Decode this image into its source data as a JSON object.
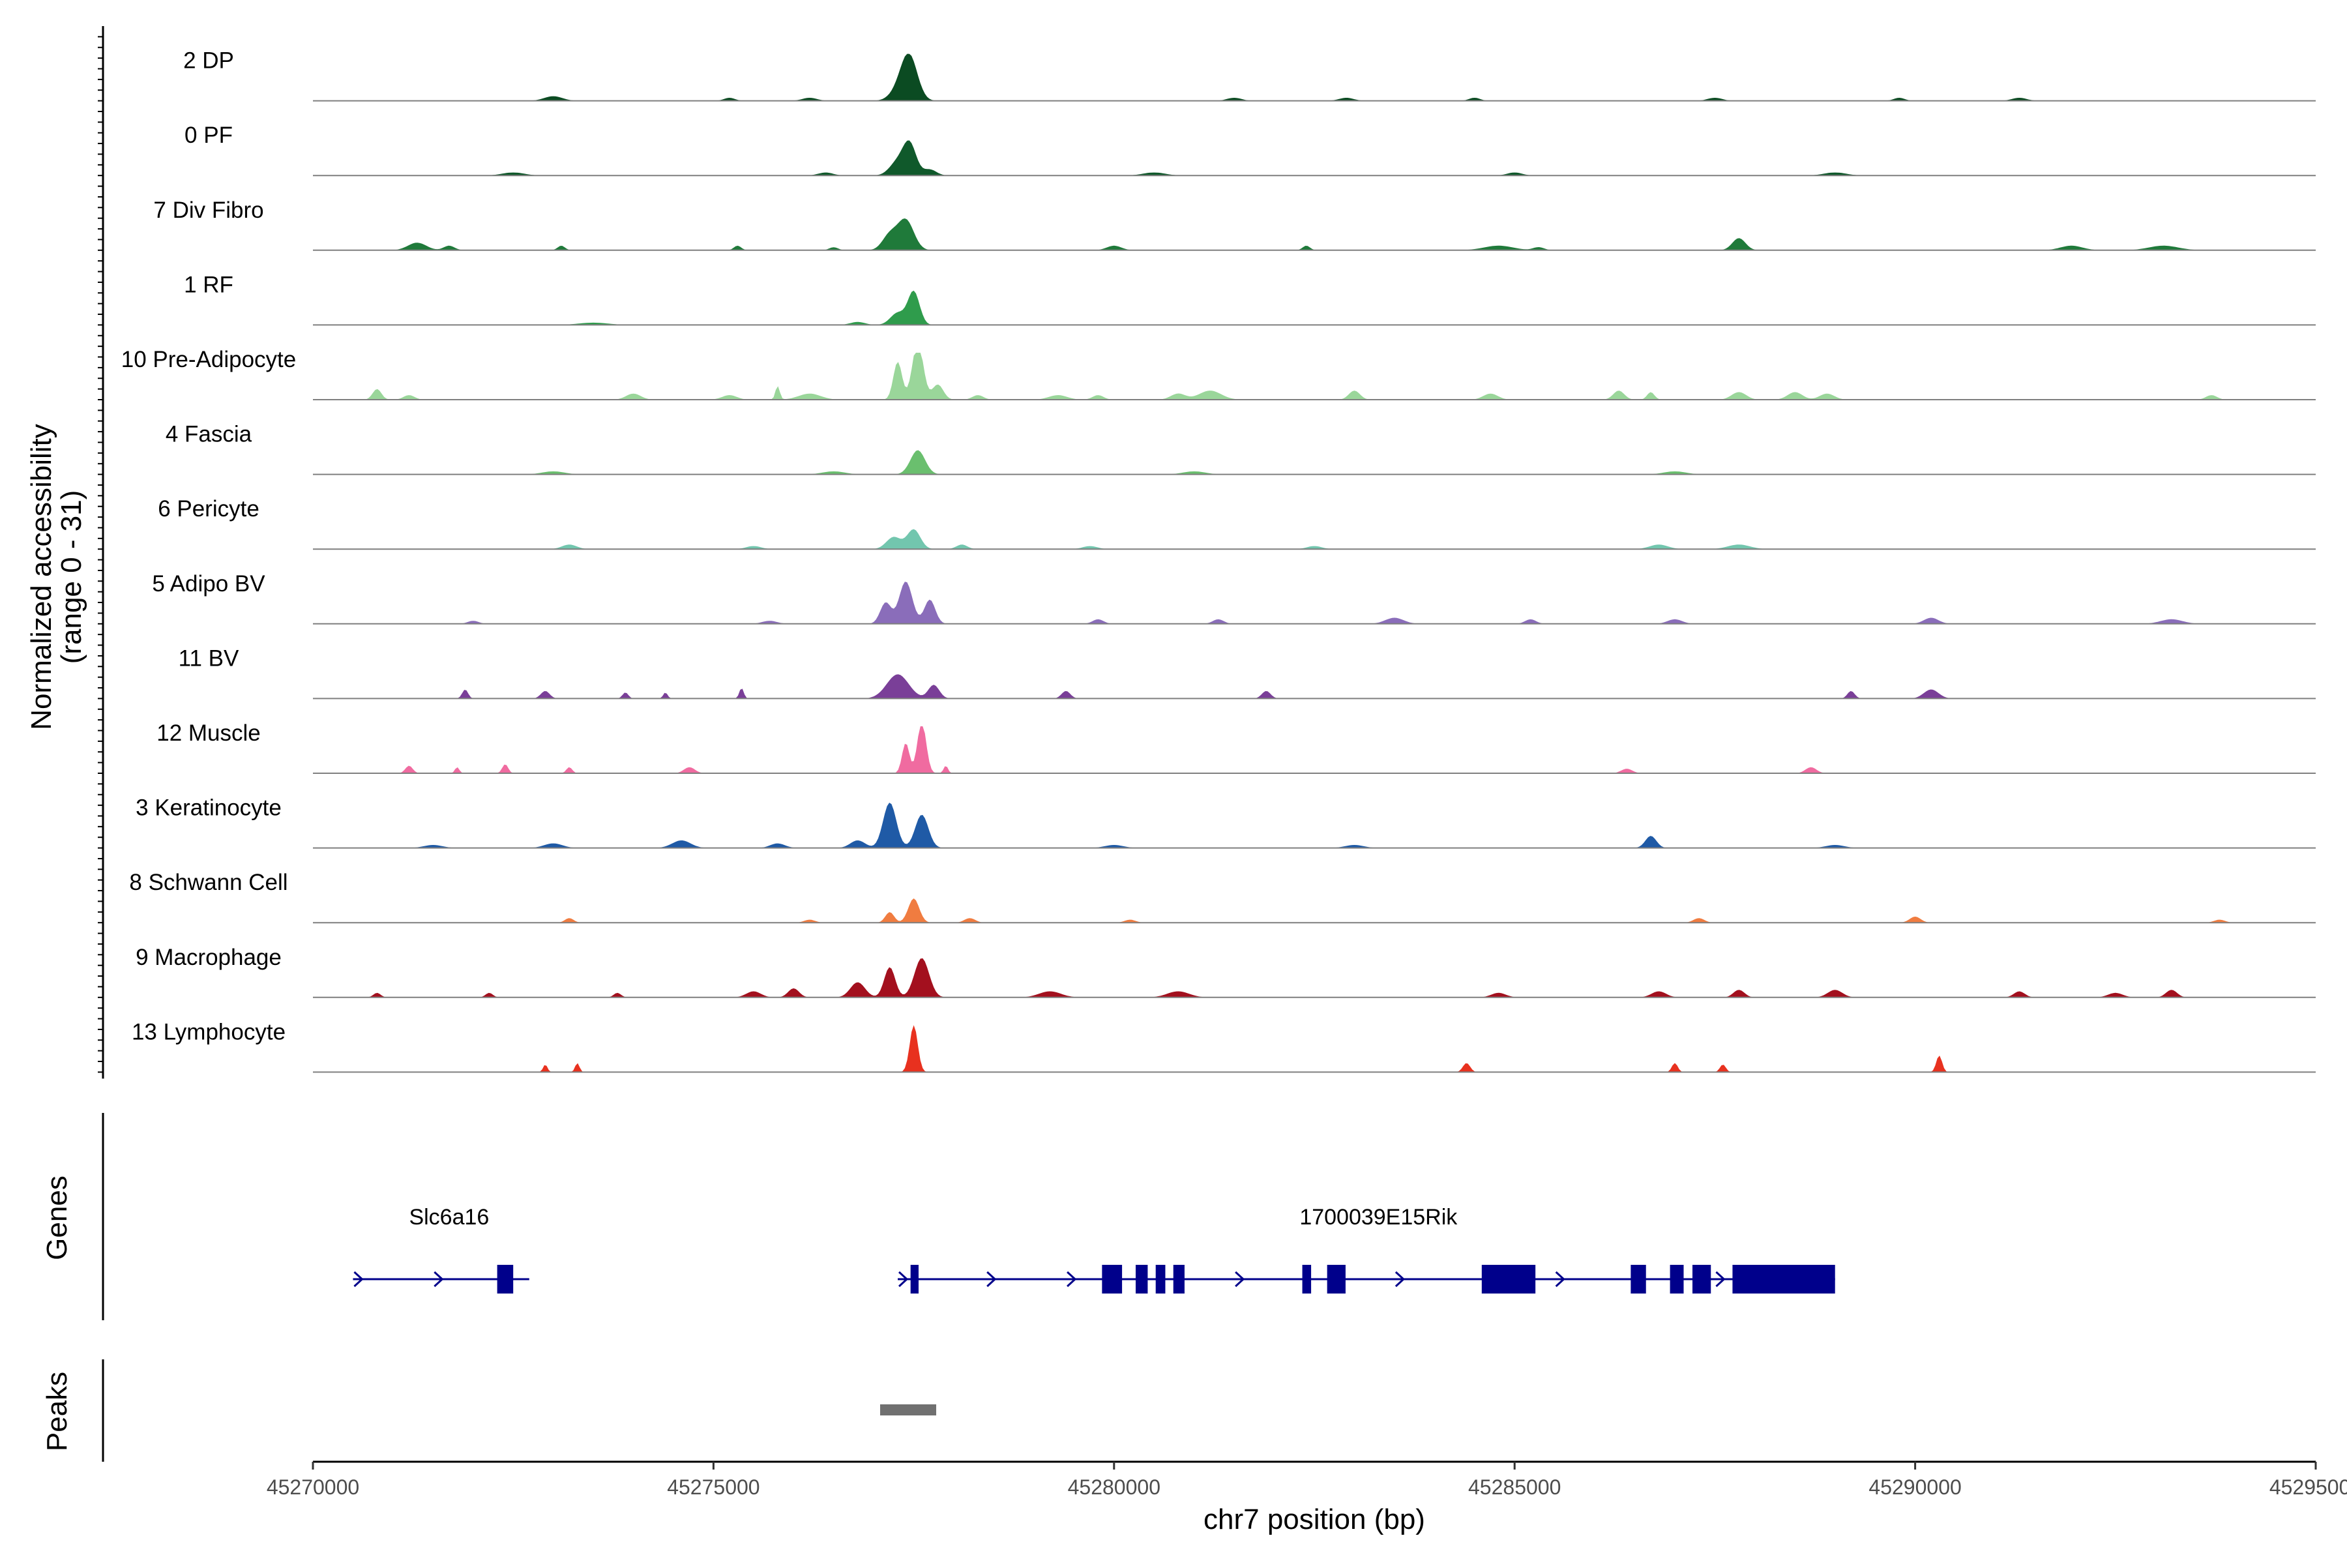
{
  "chart_data": {
    "type": "area",
    "title": "",
    "xlabel": "chr7 position (bp)",
    "ylabel": "Normalized accessibility\n(range 0 - 31)",
    "y_range_label": "(range 0 - 31)",
    "ylim": [
      0,
      31
    ],
    "xlim": [
      45270000,
      45295000
    ],
    "x_ticks": [
      45270000,
      45275000,
      45280000,
      45285000,
      45290000,
      45295000
    ],
    "x_tick_labels": [
      "45270000",
      "45275000",
      "45280000",
      "45285000",
      "45290000",
      "45295000"
    ],
    "track_range": [
      45270000,
      45295000
    ],
    "panels": {
      "genes_label": "Genes",
      "peaks_label": "Peaks"
    },
    "series": [
      {
        "name": "2 DP",
        "color": "#0b4b22",
        "peaks": [
          [
            45277450,
            25,
            220
          ],
          [
            45277350,
            9,
            260
          ],
          [
            45273000,
            3,
            250
          ],
          [
            45275200,
            2,
            150
          ],
          [
            45276200,
            2,
            200
          ],
          [
            45281500,
            2,
            200
          ],
          [
            45282900,
            2,
            200
          ],
          [
            45284500,
            2,
            150
          ],
          [
            45287500,
            2,
            200
          ],
          [
            45289800,
            2,
            150
          ],
          [
            45291300,
            2,
            200
          ]
        ]
      },
      {
        "name": "0 PF",
        "color": "#10592b",
        "peaks": [
          [
            45277450,
            20,
            180
          ],
          [
            45277300,
            9,
            220
          ],
          [
            45277700,
            4,
            180
          ],
          [
            45272500,
            2,
            300
          ],
          [
            45276400,
            2,
            200
          ],
          [
            45280500,
            2,
            300
          ],
          [
            45285000,
            2,
            200
          ],
          [
            45289000,
            2,
            300
          ]
        ]
      },
      {
        "name": "7 Div Fibro",
        "color": "#1f7a3a",
        "peaks": [
          [
            45277400,
            20,
            220
          ],
          [
            45277200,
            10,
            200
          ],
          [
            45271300,
            5,
            250
          ],
          [
            45271700,
            3,
            150
          ],
          [
            45273100,
            3,
            100
          ],
          [
            45275300,
            3,
            100
          ],
          [
            45276500,
            2,
            120
          ],
          [
            45280000,
            3,
            200
          ],
          [
            45282400,
            3,
            100
          ],
          [
            45284800,
            3,
            400
          ],
          [
            45285300,
            2,
            150
          ],
          [
            45287800,
            8,
            180
          ],
          [
            45291950,
            3,
            300
          ],
          [
            45293100,
            3,
            400
          ]
        ]
      },
      {
        "name": "1 RF",
        "color": "#2f9c4c",
        "peaks": [
          [
            45277500,
            22,
            160
          ],
          [
            45277300,
            8,
            200
          ],
          [
            45273500,
            1.5,
            400
          ],
          [
            45276800,
            2,
            200
          ]
        ]
      },
      {
        "name": "10 Pre-Adipocyte",
        "color": "#9ad69a",
        "peaks": [
          [
            45277550,
            38,
            150
          ],
          [
            45277300,
            25,
            120
          ],
          [
            45277800,
            10,
            150
          ],
          [
            45270800,
            7,
            120
          ],
          [
            45271200,
            3,
            150
          ],
          [
            45274000,
            4,
            200
          ],
          [
            45275200,
            3,
            200
          ],
          [
            45275800,
            9,
            60
          ],
          [
            45276200,
            4,
            300
          ],
          [
            45278300,
            3,
            150
          ],
          [
            45279300,
            3,
            250
          ],
          [
            45279800,
            3,
            150
          ],
          [
            45280800,
            4,
            200
          ],
          [
            45281200,
            6,
            300
          ],
          [
            45283000,
            6,
            150
          ],
          [
            45284700,
            4,
            200
          ],
          [
            45286300,
            6,
            150
          ],
          [
            45286700,
            5,
            100
          ],
          [
            45287800,
            5,
            200
          ],
          [
            45288500,
            5,
            200
          ],
          [
            45288900,
            4,
            200
          ],
          [
            45293700,
            3,
            150
          ]
        ]
      },
      {
        "name": "4 Fascia",
        "color": "#6abf6e",
        "peaks": [
          [
            45277550,
            16,
            200
          ],
          [
            45273000,
            2,
            300
          ],
          [
            45276500,
            2,
            300
          ],
          [
            45281000,
            2,
            300
          ],
          [
            45287000,
            2,
            300
          ]
        ]
      },
      {
        "name": "6 Pericyte",
        "color": "#72c6ae",
        "peaks": [
          [
            45277500,
            13,
            180
          ],
          [
            45277250,
            8,
            200
          ],
          [
            45278100,
            3,
            150
          ],
          [
            45273200,
            3,
            200
          ],
          [
            45275500,
            2,
            200
          ],
          [
            45279700,
            2,
            200
          ],
          [
            45282500,
            2,
            200
          ],
          [
            45286800,
            3,
            250
          ],
          [
            45287800,
            3,
            300
          ]
        ]
      },
      {
        "name": "5 Adipo BV",
        "color": "#8a6dba",
        "peaks": [
          [
            45277400,
            28,
            180
          ],
          [
            45277700,
            16,
            150
          ],
          [
            45277150,
            14,
            150
          ],
          [
            45272000,
            2,
            150
          ],
          [
            45275700,
            2,
            200
          ],
          [
            45279800,
            3,
            150
          ],
          [
            45281300,
            3,
            150
          ],
          [
            45283500,
            4,
            250
          ],
          [
            45285200,
            3,
            150
          ],
          [
            45287000,
            3,
            200
          ],
          [
            45290200,
            4,
            200
          ],
          [
            45293200,
            3,
            300
          ]
        ]
      },
      {
        "name": "11 BV",
        "color": "#7a3f98",
        "peaks": [
          [
            45277300,
            16,
            300
          ],
          [
            45277750,
            9,
            150
          ],
          [
            45271900,
            6,
            80
          ],
          [
            45272900,
            5,
            120
          ],
          [
            45273900,
            4,
            80
          ],
          [
            45274400,
            4,
            60
          ],
          [
            45275350,
            7,
            60
          ],
          [
            45279400,
            5,
            120
          ],
          [
            45281900,
            5,
            120
          ],
          [
            45289200,
            5,
            100
          ],
          [
            45290200,
            6,
            200
          ]
        ]
      },
      {
        "name": "12 Muscle",
        "color": "#f06ba0",
        "peaks": [
          [
            45277600,
            34,
            120
          ],
          [
            45277400,
            20,
            100
          ],
          [
            45271200,
            5,
            100
          ],
          [
            45271800,
            4,
            60
          ],
          [
            45272400,
            6,
            80
          ],
          [
            45273200,
            4,
            80
          ],
          [
            45274700,
            4,
            150
          ],
          [
            45277900,
            5,
            60
          ],
          [
            45286400,
            3,
            150
          ],
          [
            45288700,
            4,
            150
          ]
        ]
      },
      {
        "name": "3 Keratinocyte",
        "color": "#1f5aa6",
        "peaks": [
          [
            45277200,
            30,
            180
          ],
          [
            45277600,
            22,
            180
          ],
          [
            45276800,
            5,
            200
          ],
          [
            45274600,
            5,
            250
          ],
          [
            45275800,
            3,
            200
          ],
          [
            45273000,
            3,
            250
          ],
          [
            45286700,
            8,
            150
          ],
          [
            45271500,
            2,
            250
          ],
          [
            45280000,
            2,
            250
          ],
          [
            45283000,
            2,
            250
          ],
          [
            45289000,
            2,
            250
          ]
        ]
      },
      {
        "name": "8 Schwann Cell",
        "color": "#f07c40",
        "peaks": [
          [
            45277500,
            16,
            150
          ],
          [
            45277200,
            7,
            120
          ],
          [
            45278200,
            3,
            150
          ],
          [
            45273200,
            3,
            120
          ],
          [
            45276200,
            2,
            150
          ],
          [
            45280200,
            2,
            150
          ],
          [
            45287300,
            3,
            150
          ],
          [
            45290000,
            4,
            150
          ],
          [
            45293800,
            2,
            150
          ]
        ]
      },
      {
        "name": "9 Macrophage",
        "color": "#a3101e",
        "peaks": [
          [
            45277600,
            26,
            200
          ],
          [
            45277200,
            20,
            150
          ],
          [
            45276800,
            10,
            200
          ],
          [
            45276000,
            6,
            150
          ],
          [
            45275500,
            4,
            200
          ],
          [
            45270800,
            3,
            100
          ],
          [
            45272200,
            3,
            100
          ],
          [
            45273800,
            3,
            100
          ],
          [
            45279200,
            4,
            300
          ],
          [
            45280800,
            4,
            300
          ],
          [
            45284800,
            3,
            200
          ],
          [
            45286800,
            4,
            200
          ],
          [
            45287800,
            5,
            150
          ],
          [
            45289000,
            5,
            200
          ],
          [
            45291300,
            4,
            150
          ],
          [
            45292500,
            3,
            200
          ],
          [
            45293200,
            5,
            150
          ]
        ]
      },
      {
        "name": "13 Lymphocyte",
        "color": "#e8311f",
        "peaks": [
          [
            45277500,
            31,
            110
          ],
          [
            45272900,
            5,
            60
          ],
          [
            45273300,
            6,
            60
          ],
          [
            45284400,
            6,
            100
          ],
          [
            45287000,
            6,
            80
          ],
          [
            45287600,
            5,
            80
          ],
          [
            45290300,
            11,
            80
          ]
        ]
      }
    ],
    "genes": [
      {
        "name": "Slc6a16",
        "label_pos": 45271700,
        "start": 45270500,
        "end": 45272700,
        "exons": [
          [
            45272300,
            45272500
          ]
        ],
        "arrows": [
          45270500,
          45271500,
          45272300
        ]
      },
      {
        "name": "1700039E15Rik",
        "label_pos": 45283300,
        "start": 45277300,
        "end": 45289000,
        "exons": [
          [
            45277460,
            45277560
          ],
          [
            45279850,
            45280100
          ],
          [
            45280270,
            45280420
          ],
          [
            45280520,
            45280640
          ],
          [
            45280740,
            45280880
          ],
          [
            45282350,
            45282460
          ],
          [
            45282660,
            45282890
          ],
          [
            45284590,
            45285260
          ],
          [
            45286450,
            45286640
          ],
          [
            45286940,
            45287110
          ],
          [
            45287220,
            45287450
          ],
          [
            45287720,
            45289000
          ]
        ],
        "arrows": [
          45277300,
          45278400,
          45279400,
          45281500,
          45283500,
          45285500,
          45287500
        ]
      }
    ],
    "peak_regions": [
      [
        45277080,
        45277780
      ]
    ]
  }
}
